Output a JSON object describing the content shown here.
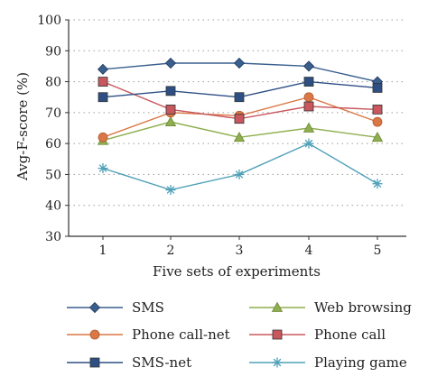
{
  "chart_data": {
    "type": "line",
    "xlabel": "Five sets of experiments",
    "ylabel": "Avg-F-score (%)",
    "categories": [
      "1",
      "2",
      "3",
      "4",
      "5"
    ],
    "ylim": [
      30,
      100
    ],
    "yticks": [
      30,
      40,
      50,
      60,
      70,
      80,
      90,
      100
    ],
    "grid": "horizontal-dotted",
    "legend_position": "bottom",
    "series": [
      {
        "name": "SMS",
        "values": [
          84,
          86,
          86,
          85,
          80
        ],
        "color": "#3a5f8f",
        "marker": "diamond"
      },
      {
        "name": "Web browsing",
        "values": [
          61,
          67,
          62,
          65,
          62
        ],
        "color": "#8fae4f",
        "marker": "triangle"
      },
      {
        "name": "Phone call-net",
        "values": [
          62,
          70,
          69,
          75,
          67
        ],
        "color": "#d97846",
        "marker": "circle"
      },
      {
        "name": "Phone call",
        "values": [
          80,
          71,
          68,
          72,
          71
        ],
        "color": "#c8585e",
        "marker": "square"
      },
      {
        "name": "SMS-net",
        "values": [
          75,
          77,
          75,
          80,
          78
        ],
        "color": "#2d4f84",
        "marker": "square"
      },
      {
        "name": "Playing game",
        "values": [
          52,
          45,
          50,
          60,
          47
        ],
        "color": "#4fa0b8",
        "marker": "star"
      }
    ]
  }
}
